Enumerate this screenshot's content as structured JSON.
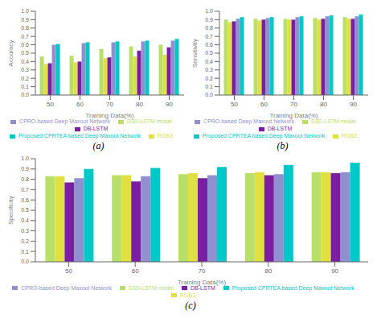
{
  "chart_data": [
    {
      "type": "bar",
      "subtitle": "(a)",
      "xlabel": "Training Data(%)",
      "ylabel": "Accuracy",
      "categories": [
        "50",
        "60",
        "70",
        "80",
        "90"
      ],
      "series": [
        {
          "name": "D3D-LSTM model",
          "color": "#b8e068",
          "values": [
            0.46,
            0.47,
            0.55,
            0.58,
            0.6
          ]
        },
        {
          "name": "RGB3",
          "color": "#e0e040",
          "values": [
            0.37,
            0.39,
            0.44,
            0.46,
            0.48
          ]
        },
        {
          "name": "DB-LSTM",
          "color": "#7b1fa2",
          "values": [
            0.38,
            0.4,
            0.45,
            0.53,
            0.57
          ]
        },
        {
          "name": "CPRO-based Deep Maxout Network",
          "color": "#9090d0",
          "values": [
            0.6,
            0.62,
            0.63,
            0.64,
            0.65
          ]
        },
        {
          "name": "Proposed CPRTEA based Deep Maxout Network",
          "color": "#00c8c8",
          "values": [
            0.61,
            0.63,
            0.64,
            0.65,
            0.67
          ]
        }
      ],
      "ylim": [
        0,
        1.0
      ],
      "yticks": [
        {
          "value": 0,
          "label": "0.0"
        },
        0.1,
        0.2,
        0.3,
        0.4,
        0.5,
        0.6,
        0.7,
        0.8,
        0.9,
        {
          "value": 1,
          "label": "1.0"
        }
      ],
      "grid": false,
      "legend": "bottom"
    },
    {
      "type": "bar",
      "subtitle": "(b)",
      "xlabel": "Training Data(%)",
      "ylabel": "Sensitivity",
      "categories": [
        "50",
        "60",
        "70",
        "80",
        "90"
      ],
      "series": [
        {
          "name": "D3D-LSTM model",
          "color": "#b8e068",
          "values": [
            0.9,
            0.91,
            0.91,
            0.92,
            0.93
          ]
        },
        {
          "name": "RGB3",
          "color": "#e0e040",
          "values": [
            0.87,
            0.89,
            0.9,
            0.9,
            0.91
          ]
        },
        {
          "name": "DB-LSTM",
          "color": "#7b1fa2",
          "values": [
            0.88,
            0.9,
            0.9,
            0.91,
            0.91
          ]
        },
        {
          "name": "CPRO-based Deep Maxout Network",
          "color": "#9090d0",
          "values": [
            0.91,
            0.92,
            0.93,
            0.94,
            0.94
          ]
        },
        {
          "name": "Proposed CPRTEA based Deep Maxout Network",
          "color": "#00c8c8",
          "values": [
            0.93,
            0.93,
            0.94,
            0.95,
            0.96
          ]
        }
      ],
      "ylim": [
        0,
        1.0
      ],
      "yticks": [
        {
          "value": 0,
          "label": "0.0"
        },
        0.1,
        0.2,
        0.3,
        0.4,
        0.5,
        0.6,
        0.7,
        0.8,
        0.9,
        {
          "value": 1,
          "label": "1.0"
        }
      ],
      "grid": false,
      "legend": "bottom"
    },
    {
      "type": "bar",
      "subtitle": "(c)",
      "xlabel": "Training Data(%)",
      "ylabel": "Specificity",
      "categories": [
        "50",
        "60",
        "70",
        "80",
        "90"
      ],
      "series": [
        {
          "name": "D3D-LSTM model",
          "color": "#b8e068",
          "values": [
            0.83,
            0.84,
            0.85,
            0.86,
            0.87
          ]
        },
        {
          "name": "RGB3",
          "color": "#e0e040",
          "values": [
            0.83,
            0.84,
            0.86,
            0.87,
            0.87
          ]
        },
        {
          "name": "DB-LSTM",
          "color": "#7b1fa2",
          "values": [
            0.77,
            0.78,
            0.81,
            0.84,
            0.86
          ]
        },
        {
          "name": "CPRO-based Deep Maxout Network",
          "color": "#9090d0",
          "values": [
            0.81,
            0.83,
            0.84,
            0.85,
            0.87
          ]
        },
        {
          "name": "Proposed CPRTEA based Deep Maxout Network",
          "color": "#00c8c8",
          "values": [
            0.9,
            0.91,
            0.92,
            0.94,
            0.96
          ]
        }
      ],
      "ylim": [
        0,
        1.0
      ],
      "yticks": [
        {
          "value": 0,
          "label": "0.0"
        },
        0.1,
        0.2,
        0.3,
        0.4,
        0.5,
        0.6,
        0.7,
        0.8,
        0.9,
        {
          "value": 1,
          "label": "1.0"
        }
      ],
      "grid": false,
      "legend": "bottom"
    }
  ]
}
